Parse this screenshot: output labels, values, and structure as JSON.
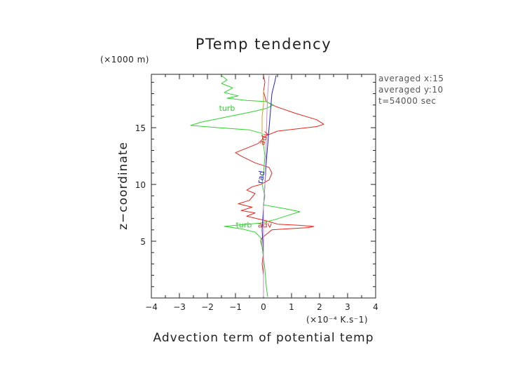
{
  "chart_data": {
    "type": "line",
    "title": "PTemp tendency",
    "xlabel": "Advection term of potential temp",
    "xunit": "(×10⁻⁴ K.s⁻1)",
    "ylabel": "z−coordinate",
    "yunit": "(×1000 m)",
    "xlim": [
      -4,
      4
    ],
    "ylim": [
      0,
      19.7
    ],
    "xticks": [
      -4,
      -3,
      -2,
      -1,
      0,
      1,
      2,
      3,
      4
    ],
    "xtick_labels": [
      "−4",
      "−3",
      "−2",
      "−1",
      "0",
      "1",
      "2",
      "3",
      "4"
    ],
    "yticks": [
      5,
      10,
      15
    ],
    "ytick_labels": [
      "5",
      "10",
      "15"
    ],
    "grid": false,
    "info_lines": [
      "averaged  x:15",
      "averaged  y:10",
      "t=54000 sec"
    ],
    "series": [
      {
        "color": "#e8261e",
        "points": [
          [
            0.0,
            0.1
          ],
          [
            0.0,
            2.0
          ],
          [
            -0.05,
            3.0
          ],
          [
            0.0,
            4.0
          ],
          [
            -0.1,
            5.0
          ],
          [
            -0.05,
            5.3
          ],
          [
            0.05,
            5.5
          ],
          [
            0.3,
            6.0
          ],
          [
            0.9,
            6.1
          ],
          [
            1.6,
            6.2
          ],
          [
            1.8,
            6.3
          ],
          [
            1.3,
            6.4
          ],
          [
            0.5,
            6.5
          ],
          [
            0.1,
            6.8
          ],
          [
            -0.6,
            7.2
          ],
          [
            -0.3,
            7.5
          ],
          [
            -0.8,
            7.7
          ],
          [
            -0.4,
            8.0
          ],
          [
            -0.9,
            8.3
          ],
          [
            -0.5,
            8.6
          ],
          [
            -0.3,
            9.2
          ],
          [
            -0.6,
            9.5
          ],
          [
            -0.4,
            9.8
          ],
          [
            -0.1,
            10.0
          ],
          [
            0.2,
            10.4
          ],
          [
            0.3,
            11.0
          ],
          [
            0.2,
            11.5
          ],
          [
            -0.3,
            11.9
          ],
          [
            -0.8,
            12.5
          ],
          [
            -1.0,
            12.8
          ],
          [
            -0.6,
            13.2
          ],
          [
            -0.2,
            13.6
          ],
          [
            0.1,
            14.3
          ],
          [
            0.5,
            14.7
          ],
          [
            1.2,
            14.9
          ],
          [
            1.9,
            15.1
          ],
          [
            2.15,
            15.3
          ],
          [
            1.9,
            15.7
          ],
          [
            1.1,
            16.3
          ],
          [
            0.4,
            16.9
          ],
          [
            0.1,
            17.3
          ],
          [
            0.0,
            18.2
          ],
          [
            0.05,
            19.0
          ],
          [
            0.0,
            19.6
          ]
        ]
      },
      {
        "color": "#2fd22f",
        "points": [
          [
            0.15,
            0.1
          ],
          [
            0.1,
            1.0
          ],
          [
            0.05,
            2.5
          ],
          [
            0.0,
            3.5
          ],
          [
            -0.05,
            4.5
          ],
          [
            -0.1,
            5.3
          ],
          [
            -0.3,
            5.8
          ],
          [
            -0.8,
            6.1
          ],
          [
            -1.4,
            6.3
          ],
          [
            -1.0,
            6.4
          ],
          [
            -0.1,
            6.6
          ],
          [
            0.4,
            6.9
          ],
          [
            0.9,
            7.3
          ],
          [
            1.3,
            7.6
          ],
          [
            0.7,
            7.9
          ],
          [
            0.0,
            8.2
          ],
          [
            0.05,
            9.0
          ],
          [
            -0.05,
            10.0
          ],
          [
            0.0,
            11.0
          ],
          [
            0.05,
            12.5
          ],
          [
            0.0,
            13.5
          ],
          [
            -0.05,
            14.5
          ],
          [
            -0.5,
            14.8
          ],
          [
            -1.6,
            15.0
          ],
          [
            -2.6,
            15.2
          ],
          [
            -2.2,
            15.5
          ],
          [
            -1.2,
            16.0
          ],
          [
            -0.4,
            16.4
          ],
          [
            0.1,
            16.7
          ],
          [
            0.35,
            17.0
          ],
          [
            0.1,
            17.3
          ],
          [
            -0.6,
            17.4
          ],
          [
            -1.3,
            17.6
          ],
          [
            -0.9,
            17.8
          ],
          [
            -1.4,
            18.1
          ],
          [
            -1.1,
            18.5
          ],
          [
            -1.5,
            18.9
          ],
          [
            -1.3,
            19.2
          ],
          [
            -1.5,
            19.6
          ]
        ]
      },
      {
        "color": "#2222cc",
        "points": [
          [
            0.0,
            0.1
          ],
          [
            0.0,
            4.0
          ],
          [
            -0.05,
            6.0
          ],
          [
            0.0,
            8.0
          ],
          [
            0.05,
            10.0
          ],
          [
            0.1,
            12.0
          ],
          [
            0.15,
            13.5
          ],
          [
            0.2,
            15.0
          ],
          [
            0.25,
            16.5
          ],
          [
            0.3,
            18.0
          ],
          [
            0.4,
            19.0
          ],
          [
            0.45,
            19.6
          ]
        ]
      },
      {
        "color": "#c78ec8",
        "points": [
          [
            0.0,
            0.1
          ],
          [
            0.0,
            8.0
          ],
          [
            0.05,
            10.0
          ],
          [
            0.08,
            12.0
          ],
          [
            0.1,
            14.0
          ],
          [
            0.12,
            16.0
          ],
          [
            0.15,
            18.0
          ],
          [
            0.2,
            19.6
          ]
        ]
      },
      {
        "color": "#d6a020",
        "points": [
          [
            -0.05,
            14.6
          ],
          [
            -0.05,
            16.0
          ],
          [
            0.0,
            17.0
          ],
          [
            0.0,
            18.3
          ]
        ]
      }
    ],
    "annotations": [
      {
        "text": "turb",
        "x": -1.3,
        "y": 16.5,
        "color": "#2fd22f"
      },
      {
        "text": "adv",
        "x": 0.1,
        "y": 14.0,
        "color": "#e8261e",
        "rotate": -70
      },
      {
        "text": "rad",
        "x": 0.0,
        "y": 10.6,
        "color": "#2222cc",
        "rotate": -80
      },
      {
        "text": "turb",
        "x": -0.7,
        "y": 6.2,
        "color": "#2fd22f"
      },
      {
        "text": "adv",
        "x": 0.05,
        "y": 6.2,
        "color": "#e8261e"
      }
    ]
  }
}
